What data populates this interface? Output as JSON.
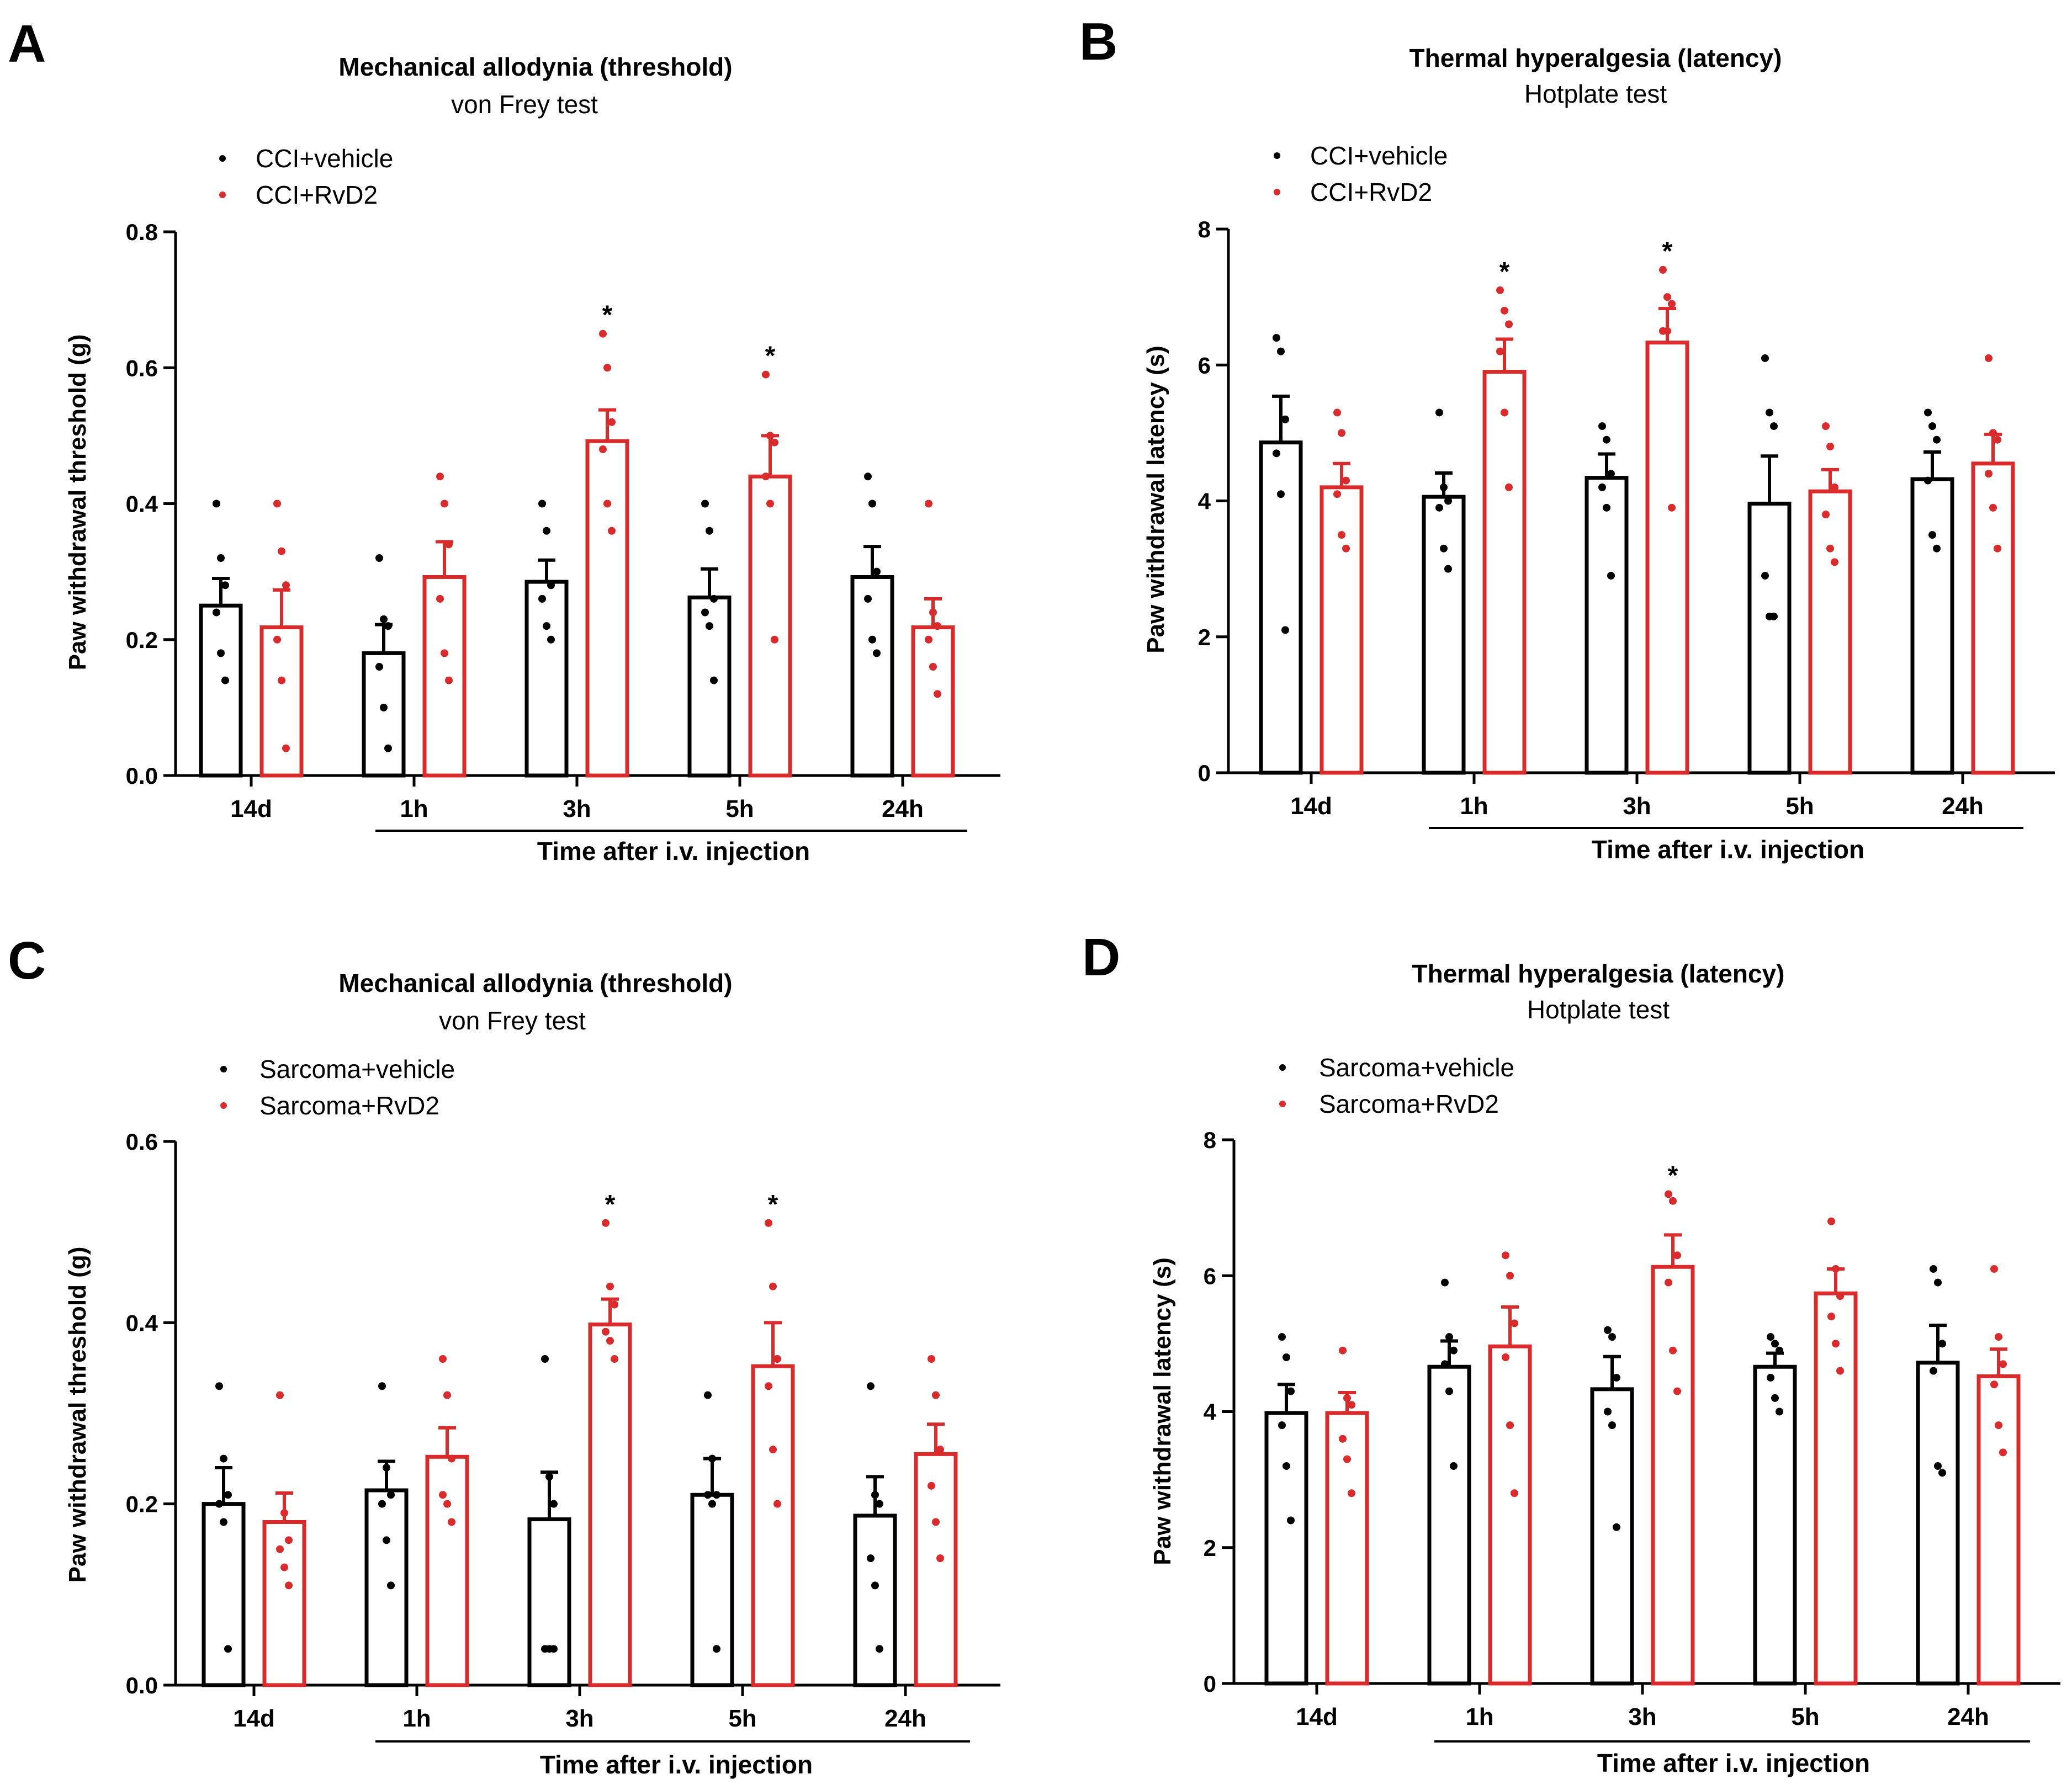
{
  "colors": {
    "vehicle": "#000000",
    "rvd2": "#d92b2b",
    "axis": "#000000"
  },
  "chart_data": [
    {
      "id": "A",
      "letter": "A",
      "type": "bar",
      "title": "Mechanical allodynia (threshold)",
      "subtitle": "von Frey test",
      "xlabel": "Time after i.v. injection",
      "ylabel": "Paw withdrawal threshold (g)",
      "ylim": [
        0,
        0.8
      ],
      "yticks": [
        0,
        0.2,
        0.4,
        0.6,
        0.8
      ],
      "ytick_labels": [
        "0.0",
        "0.2",
        "0.4",
        "0.6",
        "0.8"
      ],
      "categories": [
        "14d",
        "1h",
        "3h",
        "5h",
        "24h"
      ],
      "series": [
        {
          "name": "CCI+vehicle",
          "color": "#000000",
          "values": [
            0.25,
            0.18,
            0.285,
            0.262,
            0.292
          ],
          "sem": [
            0.04,
            0.042,
            0.032,
            0.042,
            0.045
          ],
          "points": [
            [
              0.4,
              0.32,
              0.28,
              0.24,
              0.18,
              0.14
            ],
            [
              0.32,
              0.23,
              0.22,
              0.16,
              0.1,
              0.04
            ],
            [
              0.4,
              0.36,
              0.28,
              0.26,
              0.22,
              0.2
            ],
            [
              0.4,
              0.36,
              0.26,
              0.24,
              0.22,
              0.14
            ],
            [
              0.44,
              0.4,
              0.3,
              0.26,
              0.2,
              0.18
            ]
          ],
          "significant": [
            false,
            false,
            false,
            false,
            false
          ]
        },
        {
          "name": "CCI+RvD2",
          "color": "#d92b2b",
          "values": [
            0.218,
            0.292,
            0.492,
            0.44,
            0.218
          ],
          "sem": [
            0.055,
            0.052,
            0.046,
            0.06,
            0.042
          ],
          "points": [
            [
              0.4,
              0.33,
              0.28,
              0.2,
              0.14,
              0.04
            ],
            [
              0.44,
              0.4,
              0.34,
              0.26,
              0.18,
              0.14
            ],
            [
              0.65,
              0.6,
              0.52,
              0.48,
              0.4,
              0.36
            ],
            [
              0.59,
              0.5,
              0.49,
              0.44,
              0.4,
              0.2
            ],
            [
              0.4,
              0.24,
              0.22,
              0.2,
              0.16,
              0.12
            ]
          ],
          "significant": [
            false,
            false,
            true,
            true,
            false
          ]
        }
      ]
    },
    {
      "id": "B",
      "letter": "B",
      "type": "bar",
      "title": "Thermal hyperalgesia (latency)",
      "subtitle": "Hotplate test",
      "xlabel": "Time after i.v. injection",
      "ylabel": "Paw withdrawal latency (s)",
      "ylim": [
        0,
        8
      ],
      "yticks": [
        0,
        2,
        4,
        6,
        8
      ],
      "ytick_labels": [
        "0",
        "2",
        "4",
        "6",
        "8"
      ],
      "categories": [
        "14d",
        "1h",
        "3h",
        "5h",
        "24h"
      ],
      "series": [
        {
          "name": "CCI+vehicle",
          "color": "#000000",
          "values": [
            4.86,
            4.06,
            4.34,
            3.96,
            4.32
          ],
          "sem": [
            0.68,
            0.35,
            0.35,
            0.7,
            0.4
          ],
          "points": [
            [
              6.4,
              6.2,
              5.2,
              4.7,
              4.1,
              2.1
            ],
            [
              5.3,
              4.2,
              4.0,
              3.9,
              3.3,
              3.0
            ],
            [
              5.1,
              4.9,
              4.4,
              4.2,
              3.9,
              2.9
            ],
            [
              6.1,
              5.3,
              5.1,
              2.9,
              2.3,
              2.3
            ],
            [
              5.3,
              5.1,
              4.9,
              4.3,
              3.5,
              3.3
            ]
          ],
          "significant": [
            false,
            false,
            false,
            false,
            false
          ]
        },
        {
          "name": "CCI+RvD2",
          "color": "#d92b2b",
          "values": [
            4.2,
            5.9,
            6.33,
            4.14,
            4.55
          ],
          "sem": [
            0.35,
            0.48,
            0.5,
            0.32,
            0.43
          ],
          "points": [
            [
              5.3,
              5.0,
              4.3,
              4.1,
              3.5,
              3.3
            ],
            [
              7.1,
              6.8,
              6.6,
              6.2,
              5.3,
              4.2
            ],
            [
              7.4,
              7.0,
              6.9,
              6.5,
              6.5,
              3.9
            ],
            [
              5.1,
              4.8,
              4.2,
              3.8,
              3.3,
              3.1
            ],
            [
              6.1,
              5.0,
              4.9,
              4.4,
              3.9,
              3.3
            ]
          ],
          "significant": [
            false,
            true,
            true,
            false,
            false
          ]
        }
      ]
    },
    {
      "id": "C",
      "letter": "C",
      "type": "bar",
      "title": "Mechanical allodynia (threshold)",
      "subtitle": "von Frey test",
      "xlabel": "Time after i.v. injection",
      "ylabel": "Paw withdrawal threshold (g)",
      "ylim": [
        0,
        0.6
      ],
      "yticks": [
        0,
        0.2,
        0.4,
        0.6
      ],
      "ytick_labels": [
        "0.0",
        "0.2",
        "0.4",
        "0.6"
      ],
      "categories": [
        "14d",
        "1h",
        "3h",
        "5h",
        "24h"
      ],
      "series": [
        {
          "name": "Sarcoma+vehicle",
          "color": "#000000",
          "values": [
            0.2,
            0.215,
            0.183,
            0.21,
            0.187
          ],
          "sem": [
            0.04,
            0.032,
            0.052,
            0.04,
            0.043
          ],
          "points": [
            [
              0.33,
              0.25,
              0.21,
              0.2,
              0.18,
              0.04
            ],
            [
              0.33,
              0.24,
              0.21,
              0.2,
              0.16,
              0.11
            ],
            [
              0.36,
              0.23,
              0.2,
              0.04,
              0.04,
              0.04
            ],
            [
              0.32,
              0.25,
              0.21,
              0.21,
              0.2,
              0.04
            ],
            [
              0.33,
              0.21,
              0.2,
              0.14,
              0.11,
              0.04
            ]
          ],
          "significant": [
            false,
            false,
            false,
            false,
            false
          ]
        },
        {
          "name": "Sarcoma+RvD2",
          "color": "#d92b2b",
          "values": [
            0.18,
            0.252,
            0.398,
            0.352,
            0.255
          ],
          "sem": [
            0.032,
            0.032,
            0.028,
            0.048,
            0.033
          ],
          "points": [
            [
              0.32,
              0.19,
              0.16,
              0.15,
              0.13,
              0.11
            ],
            [
              0.36,
              0.32,
              0.25,
              0.21,
              0.2,
              0.18
            ],
            [
              0.51,
              0.44,
              0.42,
              0.39,
              0.38,
              0.36
            ],
            [
              0.51,
              0.44,
              0.36,
              0.33,
              0.26,
              0.2
            ],
            [
              0.36,
              0.32,
              0.26,
              0.22,
              0.18,
              0.14
            ]
          ],
          "significant": [
            false,
            false,
            true,
            true,
            false
          ]
        }
      ]
    },
    {
      "id": "D",
      "letter": "D",
      "type": "bar",
      "title": "Thermal hyperalgesia (latency)",
      "subtitle": "Hotplate test",
      "xlabel": "Time after i.v. injection",
      "ylabel": "Paw withdrawal latency (s)",
      "ylim": [
        0,
        8
      ],
      "yticks": [
        0,
        2,
        4,
        6,
        8
      ],
      "ytick_labels": [
        "0",
        "2",
        "4",
        "6",
        "8"
      ],
      "categories": [
        "14d",
        "1h",
        "3h",
        "5h",
        "24h"
      ],
      "series": [
        {
          "name": "Sarcoma+vehicle",
          "color": "#000000",
          "values": [
            3.98,
            4.66,
            4.33,
            4.66,
            4.72
          ],
          "sem": [
            0.42,
            0.38,
            0.48,
            0.2,
            0.55
          ],
          "points": [
            [
              5.1,
              4.8,
              4.3,
              3.8,
              3.2,
              2.4
            ],
            [
              5.9,
              5.1,
              4.9,
              4.7,
              4.3,
              3.2
            ],
            [
              5.2,
              5.1,
              4.5,
              4.0,
              3.8,
              2.3
            ],
            [
              5.1,
              5.0,
              4.9,
              4.5,
              4.2,
              4.0
            ],
            [
              6.1,
              5.9,
              5.0,
              4.6,
              3.2,
              3.1
            ]
          ],
          "significant": [
            false,
            false,
            false,
            false,
            false
          ]
        },
        {
          "name": "Sarcoma+RvD2",
          "color": "#d92b2b",
          "values": [
            3.98,
            4.96,
            6.13,
            5.74,
            4.52
          ],
          "sem": [
            0.3,
            0.58,
            0.47,
            0.36,
            0.4
          ],
          "points": [
            [
              4.9,
              4.2,
              4.1,
              3.6,
              3.3,
              2.8
            ],
            [
              6.3,
              6.0,
              5.3,
              4.8,
              3.8,
              2.8
            ],
            [
              7.2,
              7.1,
              6.3,
              5.9,
              4.9,
              4.3
            ],
            [
              6.8,
              6.1,
              5.7,
              5.4,
              5.0,
              4.6
            ],
            [
              6.1,
              5.1,
              4.7,
              4.4,
              3.8,
              3.4
            ]
          ],
          "significant": [
            false,
            false,
            true,
            false,
            false
          ]
        }
      ]
    }
  ]
}
